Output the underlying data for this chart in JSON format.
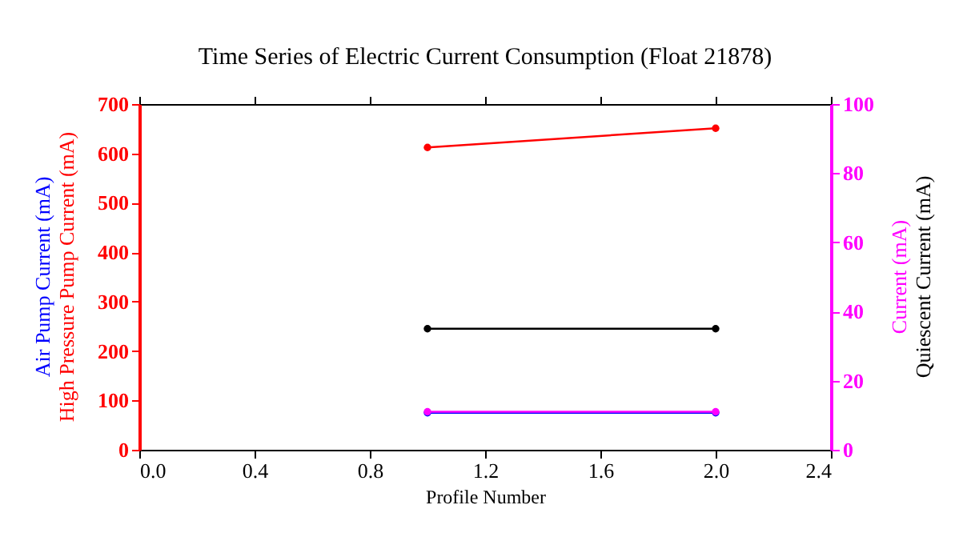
{
  "chart_data": {
    "type": "line",
    "title": "Time Series of Electric Current Consumption (Float 21878)",
    "xlabel": "Profile Number",
    "x": [
      1,
      2
    ],
    "series": [
      {
        "name": "Air Pump Current (mA)",
        "color": "#0000ff",
        "values": [
          75,
          75
        ]
      },
      {
        "name": "High Pressure Pump Current (mA)",
        "color": "#ff0000",
        "values": [
          612,
          651
        ]
      },
      {
        "name": "Current (mA)",
        "color": "#ff00ff",
        "values": [
          11,
          11
        ],
        "axis": "y2"
      },
      {
        "name": "Quiescent Current (mA)",
        "color": "#000000",
        "values": [
          35,
          35
        ],
        "axis": "y2"
      }
    ],
    "xlim": [
      0,
      2.4
    ],
    "xticks": [
      {
        "value": 0,
        "label": "0.0"
      },
      {
        "value": 0.4,
        "label": "0.4"
      },
      {
        "value": 0.8,
        "label": "0.8"
      },
      {
        "value": 1.2,
        "label": "1.2"
      },
      {
        "value": 1.6,
        "label": "1.6"
      },
      {
        "value": 2,
        "label": "2.0"
      },
      {
        "value": 2.4,
        "label": "2.4"
      }
    ],
    "ylim": [
      0,
      700
    ],
    "yticks": [
      0,
      100,
      200,
      300,
      400,
      500,
      600,
      700
    ],
    "y2lim": [
      0,
      100
    ],
    "y2ticks": [
      0,
      20,
      40,
      60,
      80,
      100
    ],
    "marker": "circle",
    "line_style": "solid",
    "grid": false,
    "legend": false
  }
}
